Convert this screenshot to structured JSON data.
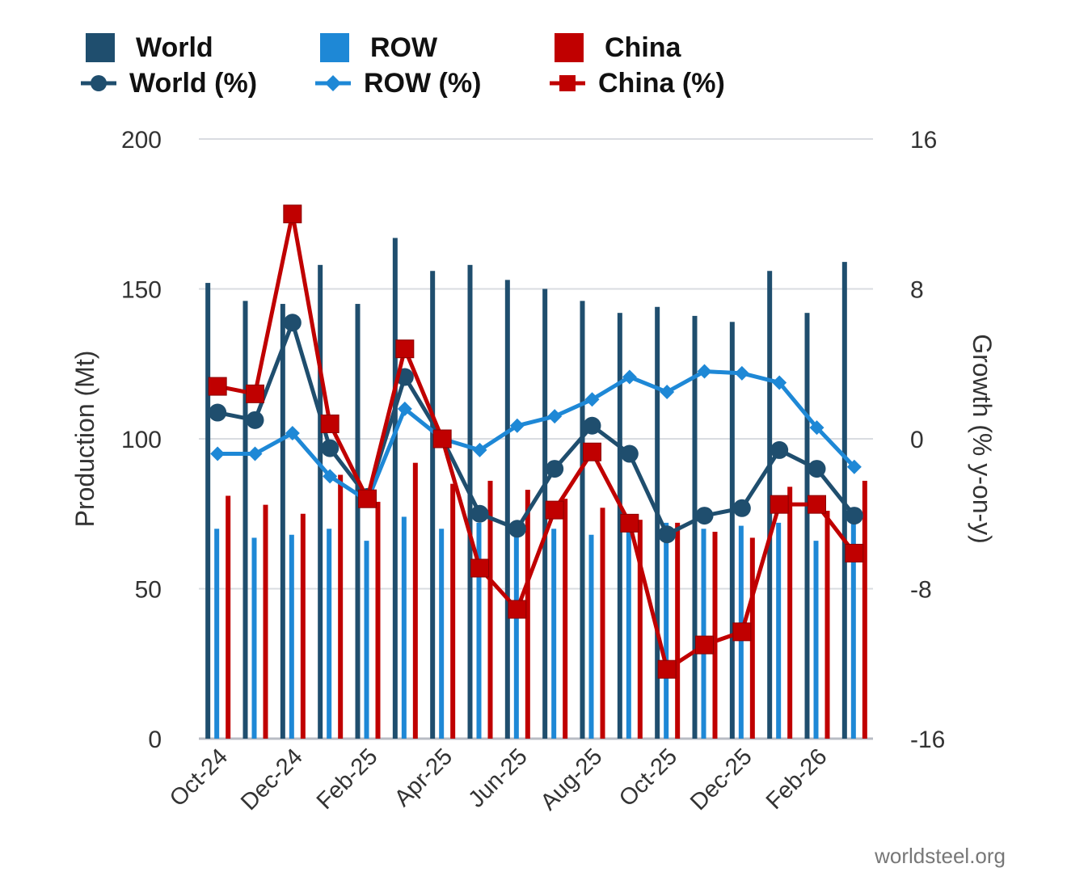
{
  "chart_data": {
    "type": "bar",
    "categories": [
      "Oct-24",
      "Nov-24",
      "Dec-24",
      "Jan-25",
      "Feb-25",
      "Mar-25",
      "Apr-25",
      "May-25",
      "Jun-25",
      "Jul-25",
      "Aug-25",
      "Sep-25",
      "Oct-25",
      "Nov-25",
      "Dec-25",
      "Jan-26",
      "Feb-26",
      "Mar-26"
    ],
    "x_tick_labels": [
      "Oct-24",
      "Dec-24",
      "Feb-25",
      "Apr-25",
      "Jun-25",
      "Aug-25",
      "Oct-25",
      "Dec-25",
      "Feb-26"
    ],
    "series": [
      {
        "name": "World",
        "kind": "bar",
        "axis": "left",
        "color": "#1f4e6e",
        "values": [
          152,
          146,
          145,
          158,
          145,
          167,
          156,
          158,
          153,
          150,
          146,
          142,
          144,
          141,
          139,
          156,
          142,
          159
        ]
      },
      {
        "name": "ROW",
        "kind": "bar",
        "axis": "left",
        "color": "#1e88d6",
        "values": [
          70,
          67,
          68,
          70,
          66,
          74,
          70,
          72,
          70,
          70,
          68,
          69,
          72,
          70,
          71,
          72,
          66,
          73
        ]
      },
      {
        "name": "China",
        "kind": "bar",
        "axis": "left",
        "color": "#c00000",
        "values": [
          81,
          78,
          75,
          88,
          79,
          92,
          85,
          86,
          83,
          80,
          77,
          73,
          72,
          69,
          67,
          84,
          76,
          86
        ]
      },
      {
        "name": "World (%)",
        "kind": "line",
        "axis": "right",
        "marker": "circle",
        "color": "#1f4e6e",
        "values": [
          1.4,
          1.0,
          6.2,
          -0.5,
          -3.1,
          3.3,
          0.0,
          -4.0,
          -4.8,
          -1.6,
          0.7,
          -0.8,
          -5.1,
          -4.1,
          -3.7,
          -0.6,
          -1.6,
          -4.1
        ]
      },
      {
        "name": "ROW (%)",
        "kind": "line",
        "axis": "right",
        "marker": "diamond",
        "color": "#1e88d6",
        "values": [
          -0.8,
          -0.8,
          0.3,
          -2.0,
          -3.3,
          1.6,
          0.0,
          -0.6,
          0.7,
          1.2,
          2.1,
          3.3,
          2.5,
          3.6,
          3.5,
          3.0,
          0.6,
          -1.5
        ]
      },
      {
        "name": "China (%)",
        "kind": "line",
        "axis": "right",
        "marker": "square",
        "color": "#c00000",
        "values": [
          2.8,
          2.4,
          12.0,
          0.8,
          -3.2,
          4.8,
          0.0,
          -6.9,
          -9.1,
          -3.8,
          -0.7,
          -4.5,
          -12.3,
          -11.0,
          -10.3,
          -3.5,
          -3.5,
          -6.1
        ]
      }
    ],
    "ylabel": "Production (Mt)",
    "y2label": "Growth (% y-on-y)",
    "ylim": [
      0,
      200
    ],
    "yticks": [
      0,
      50,
      100,
      150,
      200
    ],
    "y2lim": [
      -16,
      16
    ],
    "y2ticks": [
      -16,
      -8,
      0,
      8,
      16
    ],
    "grid": true,
    "legend_position": "top-left"
  },
  "legend": [
    {
      "label": "World",
      "type": "bar",
      "color": "#1f4e6e"
    },
    {
      "label": "ROW",
      "type": "bar",
      "color": "#1e88d6"
    },
    {
      "label": "China",
      "type": "bar",
      "color": "#c00000"
    },
    {
      "label": "World (%)",
      "type": "line",
      "marker": "circle",
      "color": "#1f4e6e"
    },
    {
      "label": "ROW (%)",
      "type": "line",
      "marker": "diamond",
      "color": "#1e88d6"
    },
    {
      "label": "China (%)",
      "type": "line",
      "marker": "square",
      "color": "#c00000"
    }
  ],
  "source": "worldsteel.org"
}
